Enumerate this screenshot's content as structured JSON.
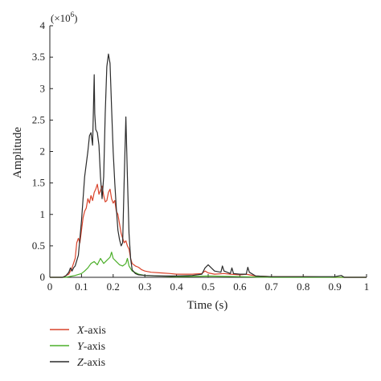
{
  "chart_data": {
    "type": "line",
    "title": "",
    "xlabel": "Time (s)",
    "ylabel": "Amplitude",
    "y_multiplier_label": "(×10",
    "y_multiplier_exp": "6",
    "y_multiplier_close": ")",
    "xlim": [
      0,
      1
    ],
    "ylim": [
      0,
      4
    ],
    "x_ticks": [
      "0",
      "0.1",
      "0.2",
      "0.3",
      "0.4",
      "0.5",
      "0.6",
      "0.7",
      "0.8",
      "0.9",
      "1"
    ],
    "y_ticks": [
      "0",
      "0.5",
      "1",
      "1.5",
      "2",
      "2.5",
      "3",
      "3.5",
      "4"
    ],
    "grid": false,
    "legend_position": "bottom-left",
    "series": [
      {
        "name": "X-axis",
        "name_italic": "X",
        "name_suffix": "-axis",
        "color": "#d9432b",
        "x": [
          0,
          0.04,
          0.06,
          0.07,
          0.08,
          0.085,
          0.09,
          0.095,
          0.1,
          0.105,
          0.11,
          0.115,
          0.12,
          0.125,
          0.13,
          0.135,
          0.14,
          0.145,
          0.15,
          0.155,
          0.16,
          0.165,
          0.17,
          0.175,
          0.18,
          0.185,
          0.19,
          0.195,
          0.2,
          0.205,
          0.21,
          0.215,
          0.22,
          0.225,
          0.23,
          0.235,
          0.24,
          0.245,
          0.25,
          0.255,
          0.26,
          0.27,
          0.28,
          0.29,
          0.3,
          0.32,
          0.35,
          0.38,
          0.4,
          0.45,
          0.48,
          0.49,
          0.5,
          0.52,
          0.55,
          0.57,
          0.6,
          0.62,
          0.65,
          0.7,
          0.8,
          0.9,
          1.0
        ],
        "y": [
          0,
          0.0,
          0.05,
          0.15,
          0.3,
          0.55,
          0.62,
          0.55,
          0.75,
          0.95,
          1.05,
          1.1,
          1.25,
          1.18,
          1.3,
          1.22,
          1.35,
          1.4,
          1.48,
          1.32,
          1.38,
          1.45,
          1.3,
          1.2,
          1.22,
          1.35,
          1.4,
          1.25,
          1.18,
          1.22,
          1.05,
          1.0,
          0.85,
          0.7,
          0.62,
          0.55,
          0.58,
          0.5,
          0.45,
          0.3,
          0.22,
          0.18,
          0.16,
          0.12,
          0.1,
          0.08,
          0.07,
          0.06,
          0.05,
          0.05,
          0.06,
          0.1,
          0.07,
          0.05,
          0.06,
          0.05,
          0.04,
          0.05,
          0.02,
          0.01,
          0.01,
          0.0,
          0.0
        ]
      },
      {
        "name": "Y-axis",
        "name_italic": "Y",
        "name_suffix": "-axis",
        "color": "#4caf2a",
        "x": [
          0,
          0.05,
          0.08,
          0.1,
          0.11,
          0.12,
          0.13,
          0.14,
          0.15,
          0.16,
          0.17,
          0.18,
          0.19,
          0.195,
          0.2,
          0.21,
          0.22,
          0.23,
          0.24,
          0.245,
          0.25,
          0.26,
          0.28,
          0.3,
          0.35,
          0.4,
          0.5,
          0.6,
          0.7,
          0.8,
          0.9,
          1.0
        ],
        "y": [
          0,
          0.0,
          0.03,
          0.06,
          0.1,
          0.15,
          0.22,
          0.25,
          0.2,
          0.3,
          0.22,
          0.27,
          0.32,
          0.4,
          0.3,
          0.25,
          0.2,
          0.18,
          0.22,
          0.3,
          0.18,
          0.1,
          0.05,
          0.03,
          0.02,
          0.01,
          0.02,
          0.01,
          0.0,
          0.0,
          0.0,
          0.0
        ]
      },
      {
        "name": "Z-axis",
        "name_italic": "Z",
        "name_suffix": "-axis",
        "color": "#2b2b2b",
        "x": [
          0,
          0.04,
          0.05,
          0.06,
          0.065,
          0.07,
          0.075,
          0.08,
          0.09,
          0.1,
          0.11,
          0.12,
          0.125,
          0.13,
          0.135,
          0.14,
          0.142,
          0.145,
          0.15,
          0.155,
          0.16,
          0.165,
          0.17,
          0.175,
          0.18,
          0.185,
          0.19,
          0.195,
          0.2,
          0.205,
          0.21,
          0.215,
          0.22,
          0.225,
          0.23,
          0.235,
          0.24,
          0.245,
          0.25,
          0.255,
          0.26,
          0.27,
          0.28,
          0.3,
          0.35,
          0.4,
          0.45,
          0.48,
          0.49,
          0.5,
          0.52,
          0.54,
          0.545,
          0.55,
          0.56,
          0.57,
          0.575,
          0.58,
          0.6,
          0.62,
          0.625,
          0.63,
          0.65,
          0.7,
          0.8,
          0.9,
          0.92,
          0.93,
          1.0
        ],
        "y": [
          0,
          0.0,
          0.02,
          0.08,
          0.15,
          0.1,
          0.15,
          0.18,
          0.35,
          0.9,
          1.6,
          2.0,
          2.25,
          2.3,
          2.1,
          3.22,
          2.6,
          2.35,
          2.3,
          2.1,
          1.6,
          1.25,
          1.6,
          2.6,
          3.35,
          3.55,
          3.4,
          2.7,
          2.0,
          1.5,
          1.1,
          0.75,
          0.6,
          0.5,
          0.55,
          1.6,
          2.55,
          1.6,
          0.7,
          0.3,
          0.12,
          0.06,
          0.04,
          0.03,
          0.02,
          0.02,
          0.03,
          0.05,
          0.15,
          0.2,
          0.1,
          0.08,
          0.18,
          0.1,
          0.08,
          0.06,
          0.15,
          0.06,
          0.05,
          0.05,
          0.16,
          0.08,
          0.02,
          0.01,
          0.01,
          0.01,
          0.03,
          0.0,
          0.0
        ]
      }
    ]
  }
}
